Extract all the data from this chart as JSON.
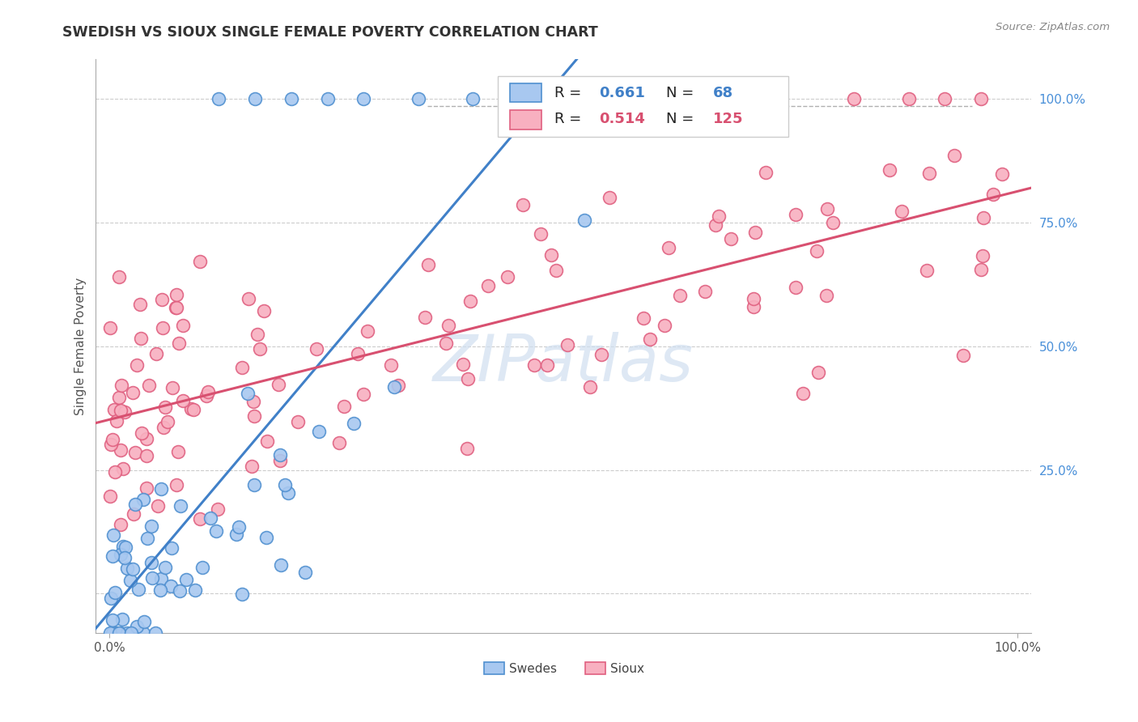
{
  "title": "SWEDISH VS SIOUX SINGLE FEMALE POVERTY CORRELATION CHART",
  "source": "Source: ZipAtlas.com",
  "ylabel": "Single Female Poverty",
  "swedes_color": "#a8c8f0",
  "swedes_edge_color": "#5090d0",
  "sioux_color": "#f8b0c0",
  "sioux_edge_color": "#e06080",
  "swedes_line_color": "#4080c8",
  "sioux_line_color": "#d85070",
  "background_color": "#ffffff",
  "grid_color": "#cccccc",
  "watermark_color": "#d0dff0",
  "right_tick_color": "#4a90d9",
  "legend_r_sw": "R = 0.661",
  "legend_n_sw": "N =  68",
  "legend_r_si": "R = 0.514",
  "legend_n_si": "N = 125"
}
